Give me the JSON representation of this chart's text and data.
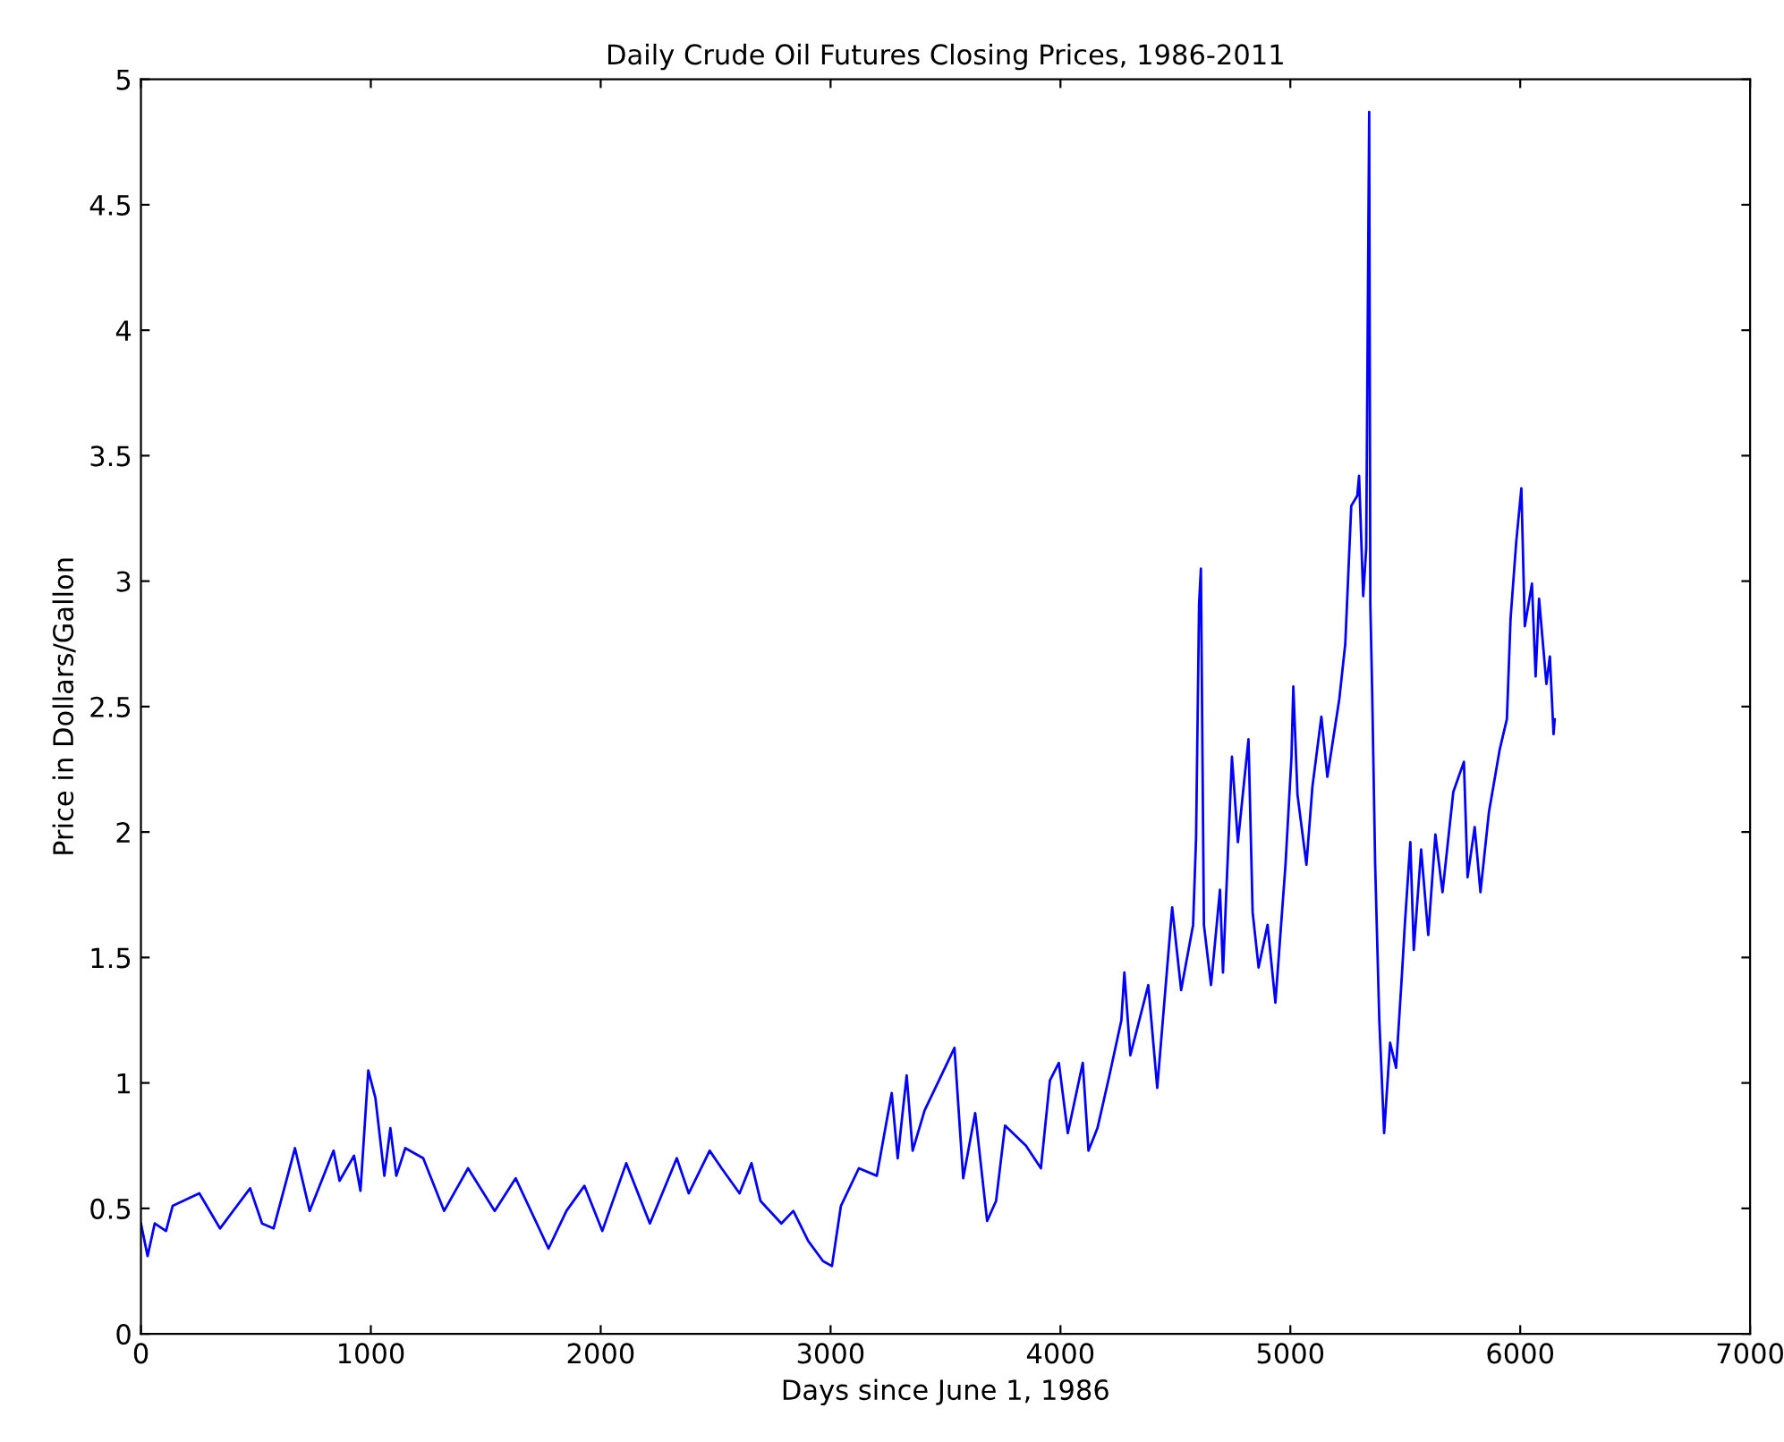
{
  "chart_data": {
    "type": "line",
    "title": "Daily Crude Oil Futures Closing Prices, 1986-2011",
    "xlabel": "Days since June 1, 1986",
    "ylabel": "Price in Dollars/Gallon",
    "xlim": [
      0,
      7000
    ],
    "xticks": [
      0,
      1000,
      2000,
      3000,
      4000,
      5000,
      6000,
      7000
    ],
    "ylim": [
      0,
      5
    ],
    "yticks": [
      0,
      0.5,
      1,
      1.5,
      2,
      2.5,
      3,
      3.5,
      4,
      4.5,
      5
    ],
    "grid": false,
    "legend": false,
    "marker": "none",
    "line_style": "solid",
    "series": [
      {
        "color": "#0000ff",
        "x": [
          0,
          29,
          60,
          109,
          138,
          254,
          344,
          475,
          527,
          577,
          670,
          734,
          838,
          864,
          927,
          955,
          989,
          1020,
          1059,
          1085,
          1111,
          1150,
          1228,
          1319,
          1423,
          1539,
          1630,
          1773,
          1851,
          1929,
          2007,
          2111,
          2214,
          2331,
          2383,
          2474,
          2526,
          2604,
          2656,
          2695,
          2786,
          2838,
          2903,
          2967,
          3006,
          3045,
          3123,
          3201,
          3266,
          3292,
          3331,
          3357,
          3409,
          3539,
          3577,
          3629,
          3681,
          3720,
          3759,
          3850,
          3915,
          3954,
          3993,
          4032,
          4097,
          4122,
          4161,
          4213,
          4265,
          4278,
          4304,
          4382,
          4421,
          4486,
          4525,
          4577,
          4590,
          4603,
          4611,
          4624,
          4655,
          4694,
          4707,
          4746,
          4772,
          4818,
          4836,
          4862,
          4901,
          4935,
          4979,
          5005,
          5013,
          5031,
          5070,
          5096,
          5135,
          5161,
          5213,
          5239,
          5265,
          5291,
          5299,
          5317,
          5330,
          5343,
          5348,
          5356,
          5369,
          5387,
          5408,
          5434,
          5460,
          5486,
          5498,
          5522,
          5537,
          5569,
          5600,
          5631,
          5662,
          5709,
          5755,
          5771,
          5802,
          5827,
          5864,
          5911,
          5942,
          5958,
          5983,
          6005,
          6020,
          6051,
          6067,
          6082,
          6114,
          6129,
          6145,
          6150
        ],
        "values": [
          0.44,
          0.31,
          0.44,
          0.41,
          0.51,
          0.56,
          0.42,
          0.58,
          0.44,
          0.42,
          0.74,
          0.49,
          0.73,
          0.61,
          0.71,
          0.57,
          1.05,
          0.94,
          0.63,
          0.82,
          0.63,
          0.74,
          0.7,
          0.49,
          0.66,
          0.49,
          0.62,
          0.34,
          0.49,
          0.59,
          0.41,
          0.68,
          0.44,
          0.7,
          0.56,
          0.73,
          0.66,
          0.56,
          0.68,
          0.53,
          0.44,
          0.49,
          0.37,
          0.29,
          0.27,
          0.51,
          0.66,
          0.63,
          0.96,
          0.7,
          1.03,
          0.73,
          0.89,
          1.14,
          0.62,
          0.88,
          0.45,
          0.53,
          0.83,
          0.75,
          0.66,
          1.01,
          1.08,
          0.8,
          1.08,
          0.73,
          0.82,
          1.03,
          1.25,
          1.44,
          1.11,
          1.39,
          0.98,
          1.7,
          1.37,
          1.63,
          1.98,
          2.91,
          3.05,
          1.63,
          1.39,
          1.77,
          1.44,
          2.3,
          1.96,
          2.37,
          1.68,
          1.46,
          1.63,
          1.32,
          1.87,
          2.3,
          2.58,
          2.15,
          1.87,
          2.18,
          2.46,
          2.22,
          2.53,
          2.75,
          3.3,
          3.34,
          3.42,
          2.94,
          3.13,
          4.87,
          2.91,
          2.56,
          1.87,
          1.25,
          0.8,
          1.16,
          1.06,
          1.44,
          1.63,
          1.96,
          1.53,
          1.93,
          1.59,
          1.99,
          1.76,
          2.16,
          2.28,
          1.82,
          2.02,
          1.76,
          2.08,
          2.33,
          2.45,
          2.85,
          3.16,
          3.37,
          2.82,
          2.99,
          2.62,
          2.93,
          2.59,
          2.7,
          2.39,
          2.45
        ]
      }
    ]
  }
}
